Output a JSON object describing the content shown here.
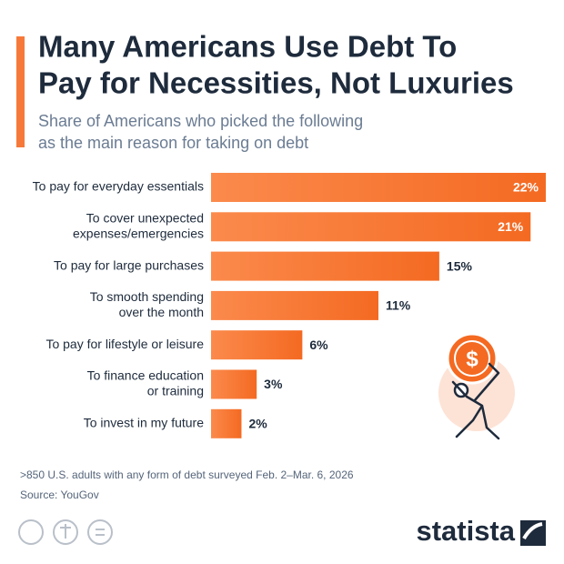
{
  "chart_data": {
    "type": "bar",
    "orientation": "horizontal",
    "title": [
      "Many Americans Use Debt To",
      "Pay for Necessities, Not Luxuries"
    ],
    "subtitle": [
      "Share of Americans who picked the following",
      "as the main reason for taking on debt"
    ],
    "categories": [
      [
        "To pay for everyday essentials"
      ],
      [
        "To cover unexpected",
        "expenses/emergencies"
      ],
      [
        "To pay for large purchases"
      ],
      [
        "To smooth spending",
        "over the month"
      ],
      [
        "To pay for lifestyle or leisure"
      ],
      [
        "To finance education",
        "or training"
      ],
      [
        "To invest in my future"
      ]
    ],
    "values": [
      22,
      21,
      15,
      11,
      6,
      3,
      2
    ],
    "value_labels": [
      "22%",
      "21%",
      "15%",
      "11%",
      "6%",
      "3%",
      "2%"
    ],
    "color": "#f7793a",
    "icon_symbol": "$",
    "note": ">850 U.S. adults with any form of debt surveyed Feb. 2–Mar. 6, 2026",
    "source": "Source: YouGov",
    "brand": "statista"
  }
}
